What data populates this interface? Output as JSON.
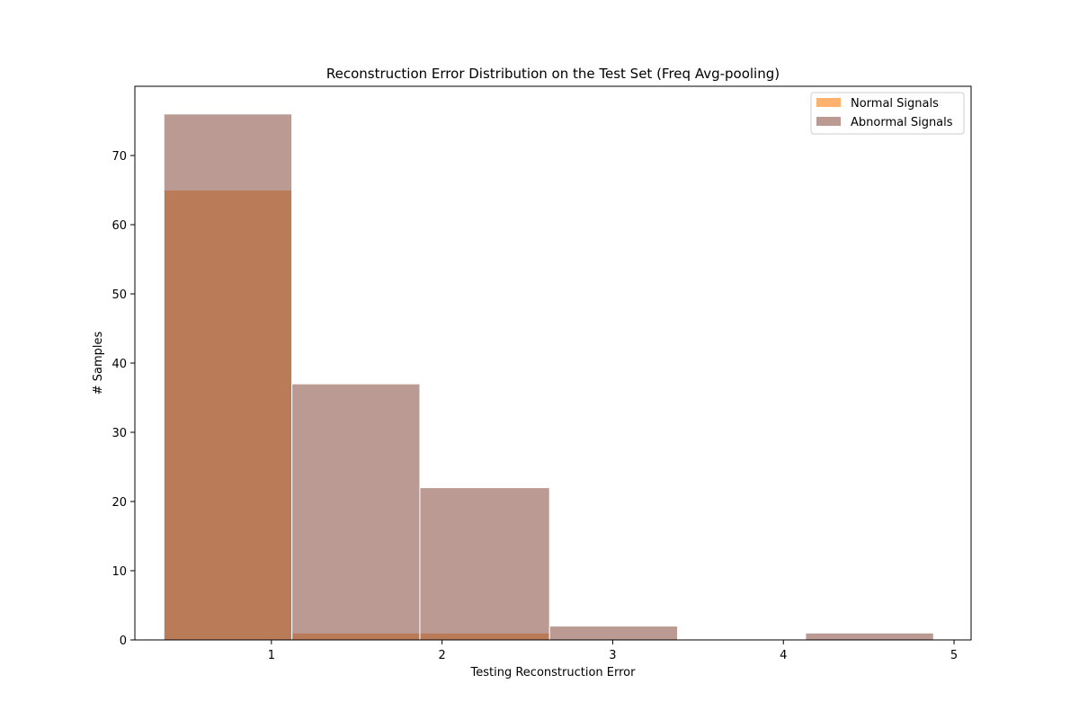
{
  "chart_data": {
    "type": "bar",
    "title": "Reconstruction Error Distribution on the Test Set (Freq Avg-pooling)",
    "xlabel": "Testing Reconstruction Error",
    "ylabel": "# Samples",
    "xlim": [
      0.2,
      5.1
    ],
    "ylim": [
      0,
      80
    ],
    "xticks": [
      1,
      2,
      3,
      4,
      5
    ],
    "yticks": [
      0,
      10,
      20,
      30,
      40,
      50,
      60,
      70
    ],
    "bin_edges": [
      0.37,
      1.12,
      1.87,
      2.63,
      3.38,
      4.13,
      4.88
    ],
    "series": [
      {
        "name": "Normal Signals",
        "color": "#ff7f0e",
        "opacity": 0.6,
        "values": [
          65,
          1,
          1,
          0,
          0,
          0
        ]
      },
      {
        "name": "Abnormal Signals",
        "color": "#8c564b",
        "opacity": 0.6,
        "values": [
          76,
          37,
          22,
          2,
          0,
          1
        ]
      }
    ],
    "legend_position": "top-right",
    "grid": false
  }
}
